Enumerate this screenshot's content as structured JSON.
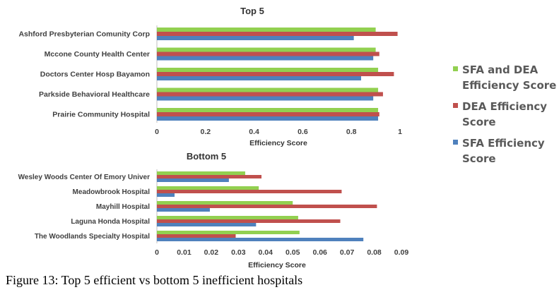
{
  "legend": {
    "items": [
      {
        "line1": "SFA and DEA",
        "line2": "Efficiency Score",
        "color": "#92d050"
      },
      {
        "line1": "DEA Efficiency",
        "line2": "Score",
        "color": "#c0504d"
      },
      {
        "line1": "SFA Efficiency",
        "line2": "Score",
        "color": "#4f81bd"
      }
    ]
  },
  "caption": "Figure 13: Top 5 efficient vs bottom 5 inefficient hospitals",
  "chart_data": [
    {
      "type": "bar",
      "orientation": "horizontal",
      "title": "Top 5",
      "xlabel": "Efficiency Score",
      "ylabel": "",
      "xlim": [
        0,
        1
      ],
      "ticks": [
        "0",
        "0.2",
        "0.4",
        "0.6",
        "0.8",
        "1"
      ],
      "grid": false,
      "legend_position": "right",
      "categories": [
        "Ashford Presbyterian Comunity Corp",
        "Mccone County Health Center",
        "Doctors Center Hosp Bayamon",
        "Parkside Behavioral Healthcare",
        "Prairie Community Hospital"
      ],
      "series": [
        {
          "name": "SFA and DEA Efficiency Score",
          "color": "#92d050",
          "values": [
            0.9,
            0.9,
            0.91,
            0.91,
            0.91
          ]
        },
        {
          "name": "DEA Efficiency Score",
          "color": "#c0504d",
          "values": [
            0.99,
            0.915,
            0.975,
            0.93,
            0.915
          ]
        },
        {
          "name": "SFA Efficiency Score",
          "color": "#4f81bd",
          "values": [
            0.81,
            0.89,
            0.84,
            0.89,
            0.91
          ]
        }
      ]
    },
    {
      "type": "bar",
      "orientation": "horizontal",
      "title": "Bottom 5",
      "xlabel": "Efficiency Score",
      "ylabel": "",
      "xlim": [
        0,
        0.09
      ],
      "ticks": [
        "0",
        "0.01",
        "0.02",
        "0.03",
        "0.04",
        "0.05",
        "0.06",
        "0.07",
        "0.08",
        "0.09"
      ],
      "grid": false,
      "legend_position": "right",
      "categories": [
        "Wesley Woods Center Of Emory Univer",
        "Meadowbrook Hospital",
        "Mayhill Hospital",
        "Laguna Honda Hospital",
        "The Woodlands Specialty Hospital"
      ],
      "series": [
        {
          "name": "SFA and DEA Efficiency Score",
          "color": "#92d050",
          "values": [
            0.0325,
            0.0375,
            0.05,
            0.052,
            0.0525
          ]
        },
        {
          "name": "DEA Efficiency Score",
          "color": "#c0504d",
          "values": [
            0.0385,
            0.068,
            0.081,
            0.0675,
            0.029
          ]
        },
        {
          "name": "SFA Efficiency Score",
          "color": "#4f81bd",
          "values": [
            0.0265,
            0.0065,
            0.0195,
            0.0365,
            0.076
          ]
        }
      ]
    }
  ]
}
